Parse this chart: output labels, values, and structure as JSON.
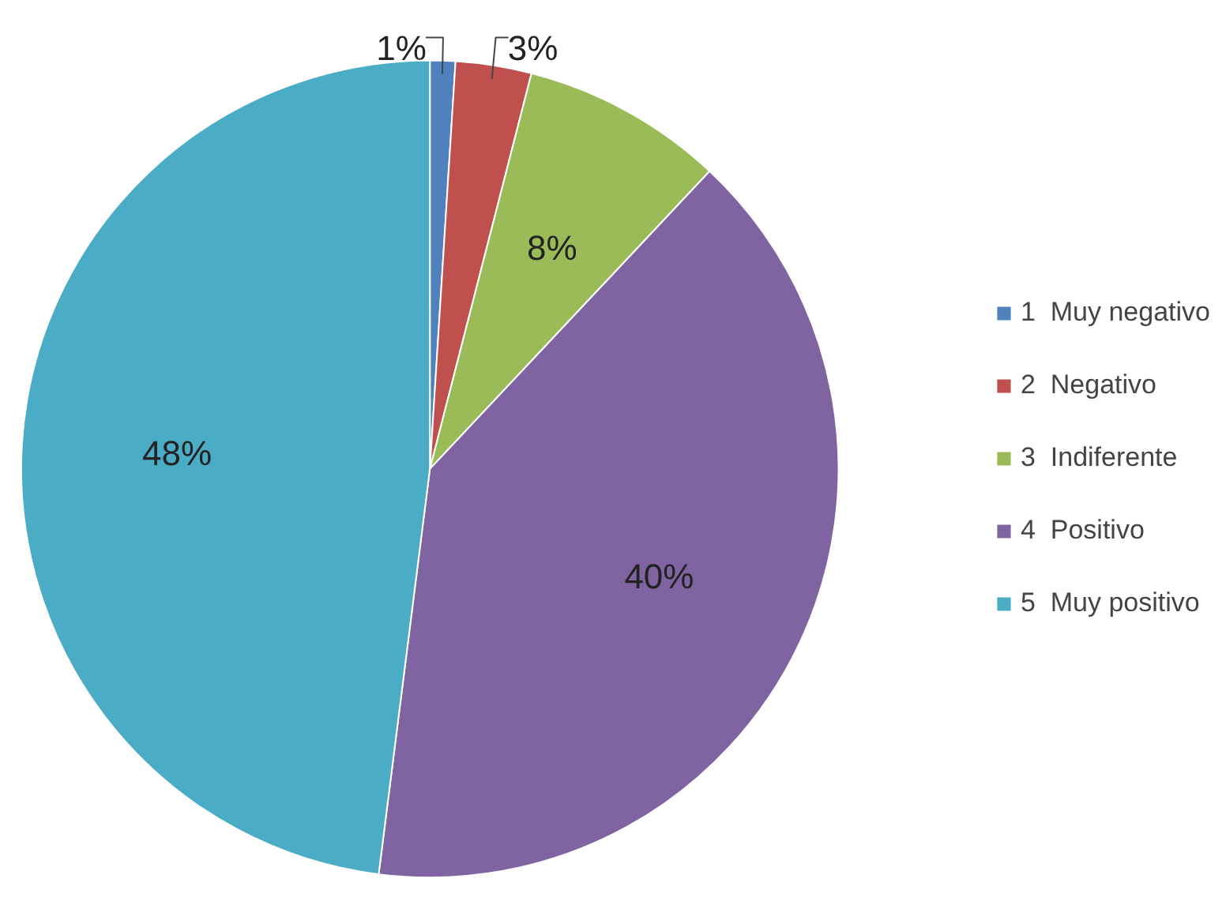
{
  "chart_data": {
    "type": "pie",
    "categories": [
      "1  Muy negativo",
      "2  Negativo",
      "3  Indiferente",
      "4  Positivo",
      "5  Muy positivo"
    ],
    "values": [
      1,
      3,
      8,
      40,
      48
    ],
    "colors": [
      "#4f81bd",
      "#c0504d",
      "#9bbb59",
      "#8064a2",
      "#4bacc6"
    ],
    "value_labels": [
      "1%",
      "3%",
      "8%",
      "40%",
      "48%"
    ],
    "legend": "right"
  }
}
